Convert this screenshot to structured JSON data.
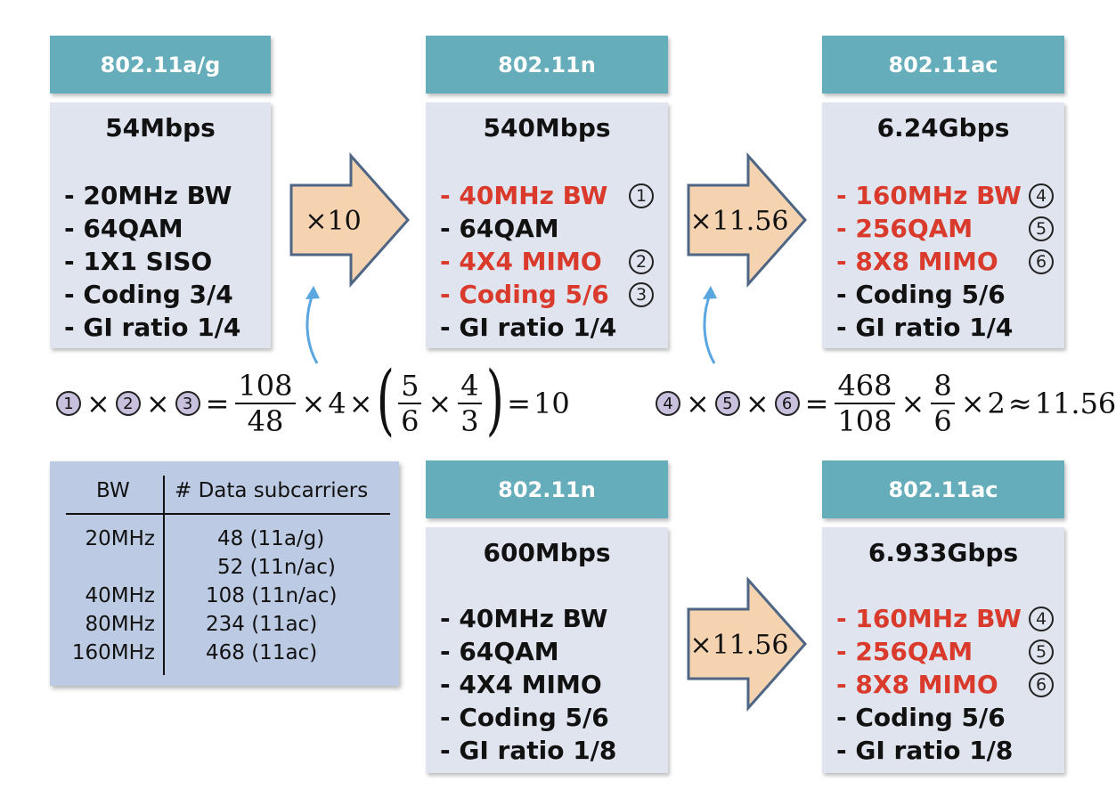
{
  "boxes": {
    "ag": {
      "header": "802.11a/g",
      "rate": "54Mbps",
      "items": [
        "- 20MHz BW",
        "- 64QAM",
        "- 1X1 SISO",
        "- Coding 3/4",
        "- GI ratio 1/4"
      ]
    },
    "n1": {
      "header": "802.11n",
      "rate": "540Mbps",
      "items": [
        "- 40MHz BW",
        "- 64QAM",
        "- 4X4 MIMO",
        "- Coding 5/6",
        "- GI ratio 1/4"
      ],
      "markers": [
        "1",
        "2",
        "3"
      ]
    },
    "ac1": {
      "header": "802.11ac",
      "rate": "6.24Gbps",
      "items": [
        "- 160MHz BW",
        "- 256QAM",
        "- 8X8 MIMO",
        "- Coding 5/6",
        "- GI ratio 1/4"
      ],
      "markers": [
        "4",
        "5",
        "6"
      ]
    },
    "n2": {
      "header": "802.11n",
      "rate": "600Mbps",
      "items": [
        "- 40MHz BW",
        "- 64QAM",
        "- 4X4 MIMO",
        "- Coding 5/6",
        "- GI ratio 1/8"
      ]
    },
    "ac2": {
      "header": "802.11ac",
      "rate": "6.933Gbps",
      "items": [
        "- 160MHz BW",
        "- 256QAM",
        "- 8X8 MIMO",
        "- Coding 5/6",
        "- GI ratio 1/8"
      ],
      "markers": [
        "4",
        "5",
        "6"
      ]
    }
  },
  "arrows": {
    "a1": "×10",
    "a2": "×11.56",
    "a3": "×11.56"
  },
  "formula1": {
    "m1": "1",
    "m2": "2",
    "m3": "3",
    "times": "×",
    "eq": "=",
    "f1n": "108",
    "f1d": "48",
    "four": "4",
    "f2n": "5",
    "f2d": "6",
    "f3n": "4",
    "f3d": "3",
    "lparen": "(",
    "rparen": ")",
    "result": "10"
  },
  "formula2": {
    "m1": "4",
    "m2": "5",
    "m3": "6",
    "times": "×",
    "eq": "=",
    "approx": "≈",
    "f1n": "468",
    "f1d": "108",
    "f2n": "8",
    "f2d": "6",
    "two": "2",
    "result": "11.56"
  },
  "table": {
    "col1": "BW",
    "col2": "# Data subcarriers",
    "rows": [
      {
        "bw": "20MHz",
        "val": "48 (11a/g)"
      },
      {
        "bw": "",
        "val": "52 (11n/ac)"
      },
      {
        "bw": "40MHz",
        "val": "108 (11n/ac)"
      },
      {
        "bw": "80MHz",
        "val": "234 (11ac)"
      },
      {
        "bw": "160MHz",
        "val": "468 (11ac)"
      }
    ]
  },
  "colors": {
    "header_bg": "#65adba",
    "box_bg": "#dfe4ee",
    "highlight_red": "#d93a2b",
    "arrow_fill": "#f5d3b0",
    "arrow_stroke": "#4e6584",
    "curve_arrow": "#5aa6e0",
    "table_bg": "#bccbe3",
    "marker_fill": "#c9c0dd"
  }
}
